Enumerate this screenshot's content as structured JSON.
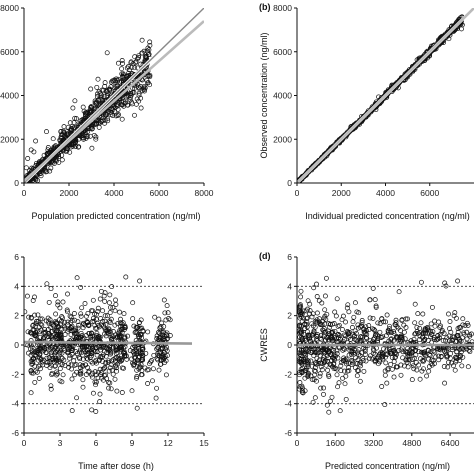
{
  "chart_data": [
    {
      "panel_id": "a",
      "panel_label": "",
      "type": "scatter",
      "xlabel": "Population predicted concentration (ng/ml)",
      "ylabel": "",
      "xlim": [
        0,
        8000
      ],
      "ylim": [
        0,
        8000
      ],
      "xticks": [
        "0",
        "2000",
        "4000",
        "6000",
        "8000"
      ],
      "yticks": [
        "0",
        "2000",
        "4000",
        "6000",
        "8000"
      ],
      "lines": [
        {
          "kind": "identity",
          "color": "#888888"
        },
        {
          "kind": "smooth",
          "color": "#bbbbbb",
          "points": [
            [
              0,
              100
            ],
            [
              8000,
              7400
            ]
          ]
        }
      ],
      "cloud": {
        "x_range": [
          100,
          5600
        ],
        "y_spread": 900,
        "n": 900
      },
      "marker": "open-circle"
    },
    {
      "panel_id": "b",
      "panel_label": "(b)",
      "type": "scatter",
      "xlabel": "Individual predicted concentration (ng/ml)",
      "ylabel": "Observed concentration (ng/ml)",
      "xlim": [
        0,
        8000
      ],
      "ylim": [
        0,
        8000
      ],
      "xticks": [
        "0",
        "2000",
        "4000",
        "6000"
      ],
      "yticks": [
        "0",
        "2000",
        "4000",
        "6000",
        "8000"
      ],
      "lines": [
        {
          "kind": "identity",
          "color": "#888888"
        },
        {
          "kind": "smooth",
          "color": "#bbbbbb",
          "points": [
            [
              0,
              0
            ],
            [
              8000,
              8000
            ]
          ]
        }
      ],
      "cloud": {
        "x_range": [
          100,
          7500
        ],
        "y_spread": 160,
        "n": 800
      },
      "marker": "open-circle"
    },
    {
      "panel_id": "c",
      "panel_label": "",
      "type": "scatter",
      "xlabel": "Time after dose (h)",
      "ylabel": "",
      "xlim": [
        0,
        15
      ],
      "ylim": [
        -6,
        6
      ],
      "xticks": [
        "0",
        "3",
        "6",
        "9",
        "12",
        "15"
      ],
      "yticks": [
        "-6",
        "-4",
        "-2",
        "0",
        "2",
        "4",
        "6"
      ],
      "reference_lines": [
        -4,
        4
      ],
      "lines": [
        {
          "kind": "smooth",
          "color": "#999999",
          "points": [
            [
              0,
              0.2
            ],
            [
              14,
              0.1
            ]
          ]
        }
      ],
      "cloud": {
        "x_clusters": [
          1,
          2,
          3,
          4,
          5,
          6,
          7,
          8,
          9.5,
          11.5
        ],
        "x_range": [
          0,
          12.2
        ],
        "y_spread": 1.2,
        "n": 900
      },
      "marker": "open-circle"
    },
    {
      "panel_id": "d",
      "panel_label": "(d)",
      "type": "scatter",
      "xlabel": "Predicted concentration (ng/ml)",
      "ylabel": "CWRES",
      "xlim": [
        0,
        7400
      ],
      "ylim": [
        -6,
        6
      ],
      "xticks": [
        "0",
        "1600",
        "3200",
        "4800",
        "6400"
      ],
      "yticks": [
        "-6",
        "-4",
        "-2",
        "0",
        "2",
        "4",
        "6"
      ],
      "reference_lines": [
        -4,
        4
      ],
      "lines": [
        {
          "kind": "smooth",
          "color": "#999999",
          "points": [
            [
              0,
              0
            ],
            [
              7400,
              0
            ]
          ]
        }
      ],
      "cloud": {
        "x_range": [
          100,
          7400
        ],
        "y_spread": 1.1,
        "n": 900
      },
      "marker": "open-circle"
    }
  ]
}
